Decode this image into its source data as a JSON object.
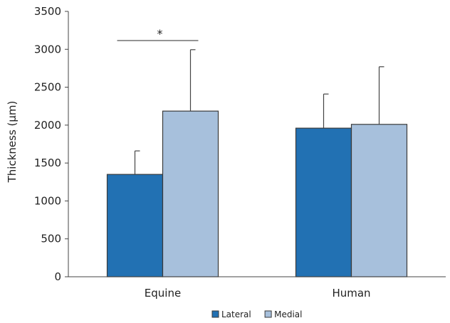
{
  "chart_data": {
    "type": "bar",
    "title": "",
    "xlabel": "",
    "ylabel": "Thickness (µm)",
    "ylim": [
      0,
      3500
    ],
    "yticks": [
      0,
      500,
      1000,
      1500,
      2000,
      2500,
      3000,
      3500
    ],
    "categories": [
      "Equine",
      "Human"
    ],
    "series": [
      {
        "name": "Lateral",
        "values": [
          1350,
          1960
        ],
        "errors": [
          310,
          450
        ],
        "color": "#2271b3"
      },
      {
        "name": "Medial",
        "values": [
          2185,
          2010
        ],
        "errors": [
          810,
          760
        ],
        "color": "#a7c0dc"
      }
    ],
    "legend": {
      "position": "bottom-center"
    },
    "grid": false,
    "annotations": [
      {
        "text": "*",
        "category": "Equine",
        "meaning": "significance bar between Lateral and Medial"
      }
    ]
  }
}
